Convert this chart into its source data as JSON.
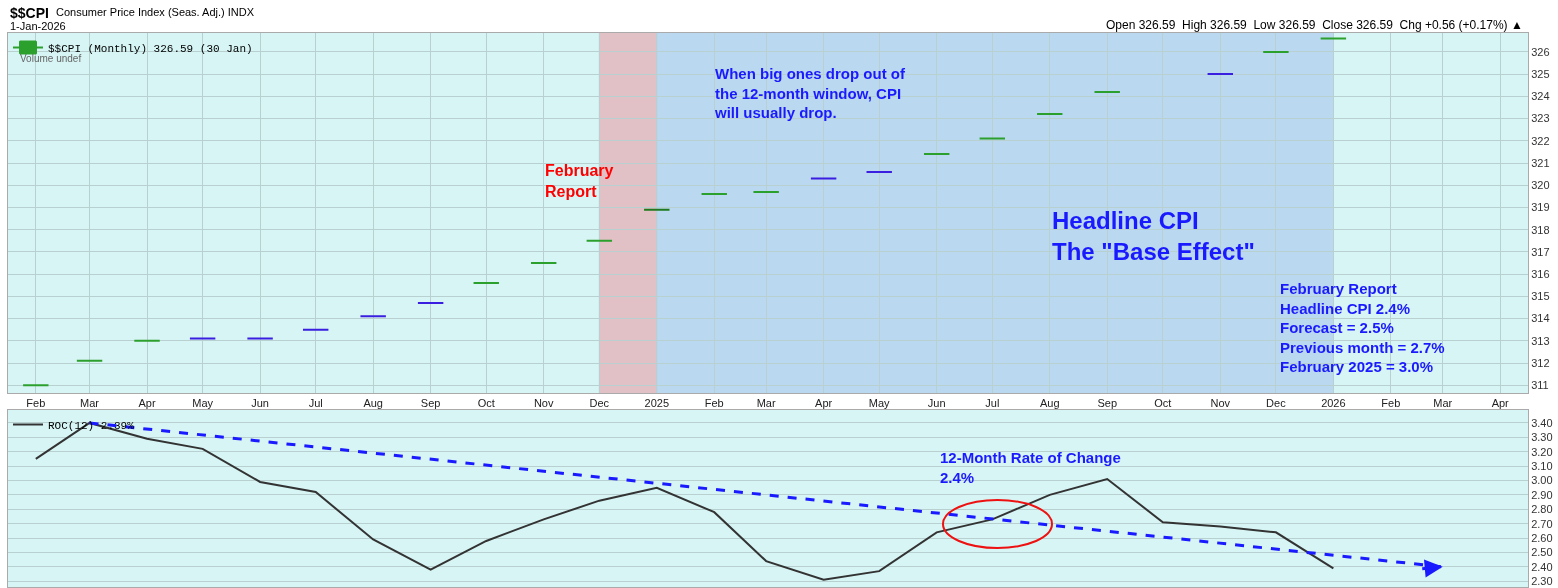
{
  "chart_data": [
    {
      "type": "candlestick",
      "title": "$$CPI",
      "subtitle": "Consumer Price Index (Seas. Adj.) INDX",
      "annotations": [
        "1-Jan-2026",
        "Volume undef",
        "Open 326.59  High 326.59  Low 326.59  Close 326.59  Chg +0.56 (+0.17%) ▲",
        "February\nReport",
        "When big ones drop out of\nthe 12-month window, CPI\nwill usually drop.",
        "Headline CPI\nThe \"Base Effect\"",
        "February Report\nHeadline CPI 2.4%\nForecast = 2.5%\nPrevious month = 2.7%\nFebruary 2025 = 3.0%"
      ],
      "x": [
        "2024-02",
        "2024-03",
        "2024-04",
        "2024-05",
        "2024-06",
        "2024-07",
        "2024-08",
        "2024-09",
        "2024-10",
        "2024-11",
        "2024-12",
        "2025-01",
        "2025-02",
        "2025-03",
        "2025-04",
        "2025-05",
        "2025-06",
        "2025-07",
        "2025-08",
        "2025-09",
        "2025-11",
        "2025-12",
        "2026-01"
      ],
      "series": [
        {
          "name": "$$CPI (Monthly) 326.59 (30 Jan)",
          "ohlc": [
            [
              311.0,
              311.0,
              311.0,
              311.0
            ],
            [
              312.1,
              312.1,
              312.1,
              312.1
            ],
            [
              313.0,
              313.0,
              313.0,
              313.0
            ],
            [
              313.1,
              313.1,
              313.1,
              313.1
            ],
            [
              313.1,
              313.1,
              313.1,
              313.1
            ],
            [
              313.5,
              313.5,
              313.5,
              313.5
            ],
            [
              314.1,
              314.1,
              314.1,
              314.1
            ],
            [
              314.7,
              314.7,
              314.7,
              314.7
            ],
            [
              315.6,
              315.6,
              315.6,
              315.6
            ],
            [
              316.5,
              316.5,
              316.5,
              316.5
            ],
            [
              317.5,
              317.5,
              317.5,
              317.5
            ],
            [
              318.9,
              318.9,
              318.9,
              318.9
            ],
            [
              319.6,
              319.6,
              319.6,
              319.6
            ],
            [
              319.7,
              319.7,
              319.7,
              319.7
            ],
            [
              320.3,
              320.3,
              320.3,
              320.3
            ],
            [
              320.6,
              320.6,
              320.6,
              320.6
            ],
            [
              321.4,
              321.4,
              321.4,
              321.4
            ],
            [
              322.1,
              322.1,
              322.1,
              322.1
            ],
            [
              323.2,
              323.2,
              323.2,
              323.2
            ],
            [
              324.2,
              324.2,
              324.2,
              324.2
            ],
            [
              325.0,
              325.0,
              325.0,
              325.0
            ],
            [
              326.0,
              326.0,
              326.0,
              326.0
            ],
            [
              326.6,
              326.6,
              326.6,
              326.6
            ]
          ],
          "colors": [
            "#2ca02c",
            "#2ca02c",
            "#2ca02c",
            "#3a1fe0",
            "#3a1fe0",
            "#3a1fe0",
            "#3a1fe0",
            "#3a1fe0",
            "#2ca02c",
            "#2ca02c",
            "#2ca02c",
            "#1f7a1f",
            "#2ca02c",
            "#2ca02c",
            "#3a1fe0",
            "#3a1fe0",
            "#2ca02c",
            "#2ca02c",
            "#2ca02c",
            "#2ca02c",
            "#3a1fe0",
            "#2ca02c",
            "#2ca02c"
          ]
        }
      ],
      "bands": [
        {
          "axis": "x",
          "from": "2024-12",
          "to": "2025-01",
          "color": "#e8a0a8"
        },
        {
          "axis": "x",
          "from": "2025-01",
          "to": "2026-01",
          "color": "#a8c8f0"
        }
      ],
      "xlim": [
        "2024-01-17",
        "2026-04-16"
      ],
      "xticks": [
        {
          "value": "2024-02",
          "label": "Feb"
        },
        {
          "value": "2024-03",
          "label": "Mar"
        },
        {
          "value": "2024-04",
          "label": "Apr"
        },
        {
          "value": "2024-05",
          "label": "May"
        },
        {
          "value": "2024-06",
          "label": "Jun"
        },
        {
          "value": "2024-07",
          "label": "Jul"
        },
        {
          "value": "2024-08",
          "label": "Aug"
        },
        {
          "value": "2024-09",
          "label": "Sep"
        },
        {
          "value": "2024-10",
          "label": "Oct"
        },
        {
          "value": "2024-11",
          "label": "Nov"
        },
        {
          "value": "2024-12",
          "label": "Dec"
        },
        {
          "value": "2025-01",
          "label": "2025"
        },
        {
          "value": "2025-02",
          "label": "Feb"
        },
        {
          "value": "2025-03",
          "label": "Mar"
        },
        {
          "value": "2025-04",
          "label": "Apr"
        },
        {
          "value": "2025-05",
          "label": "May"
        },
        {
          "value": "2025-06",
          "label": "Jun"
        },
        {
          "value": "2025-07",
          "label": "Jul"
        },
        {
          "value": "2025-08",
          "label": "Aug"
        },
        {
          "value": "2025-09",
          "label": "Sep"
        },
        {
          "value": "2025-10",
          "label": "Oct"
        },
        {
          "value": "2025-11",
          "label": "Nov"
        },
        {
          "value": "2025-12",
          "label": "Dec"
        },
        {
          "value": "2026-01",
          "label": "2026"
        },
        {
          "value": "2026-02",
          "label": "Feb"
        },
        {
          "value": "2026-03",
          "label": "Mar"
        },
        {
          "value": "2026-04",
          "label": "Apr"
        }
      ],
      "ylim": [
        310.65,
        326.85
      ],
      "yticks": [
        311,
        312,
        313,
        314,
        315,
        316,
        317,
        318,
        319,
        320,
        321,
        322,
        323,
        324,
        325,
        326
      ],
      "grid": true,
      "legend": "top left"
    },
    {
      "type": "line",
      "annotations": [
        "12-Month Rate of Change\n2.4%"
      ],
      "series": [
        {
          "name": "ROC(12) 2.39%",
          "color": "#333333",
          "x": [
            "2024-02",
            "2024-03",
            "2024-04",
            "2024-05",
            "2024-06",
            "2024-07",
            "2024-08",
            "2024-09",
            "2024-10",
            "2024-11",
            "2024-12",
            "2025-01",
            "2025-02",
            "2025-03",
            "2025-04",
            "2025-05",
            "2025-06",
            "2025-07",
            "2025-08",
            "2025-09",
            "2025-10",
            "2025-11",
            "2025-12",
            "2026-01"
          ],
          "values": [
            3.15,
            3.4,
            3.29,
            3.22,
            2.99,
            2.92,
            2.59,
            2.38,
            2.58,
            2.73,
            2.86,
            2.95,
            2.78,
            2.44,
            2.31,
            2.37,
            2.64,
            2.73,
            2.9,
            3.01,
            2.71,
            2.68,
            2.64,
            2.39
          ]
        },
        {
          "color": "#1a1aff",
          "x": [
            "2024-03",
            "2026-03"
          ],
          "values": [
            3.4,
            2.4
          ],
          "line_style": "dashed"
        }
      ],
      "xlim": [
        "2024-01-17",
        "2026-04-16"
      ],
      "ylim": [
        2.26,
        3.49
      ],
      "yticks": [
        {
          "value": 2.3,
          "label": "2.30"
        },
        {
          "value": 2.4,
          "label": "2.40"
        },
        {
          "value": 2.5,
          "label": "2.50"
        },
        {
          "value": 2.6,
          "label": "2.60"
        },
        {
          "value": 2.7,
          "label": "2.70"
        },
        {
          "value": 2.8,
          "label": "2.80"
        },
        {
          "value": 2.9,
          "label": "2.90"
        },
        {
          "value": 3.0,
          "label": "3.00"
        },
        {
          "value": 3.1,
          "label": "3.10"
        },
        {
          "value": 3.2,
          "label": "3.20"
        },
        {
          "value": 3.3,
          "label": "3.30"
        },
        {
          "value": 3.4,
          "label": "3.40"
        }
      ],
      "tick_labels": "y",
      "grid": true,
      "legend": "top left"
    }
  ]
}
